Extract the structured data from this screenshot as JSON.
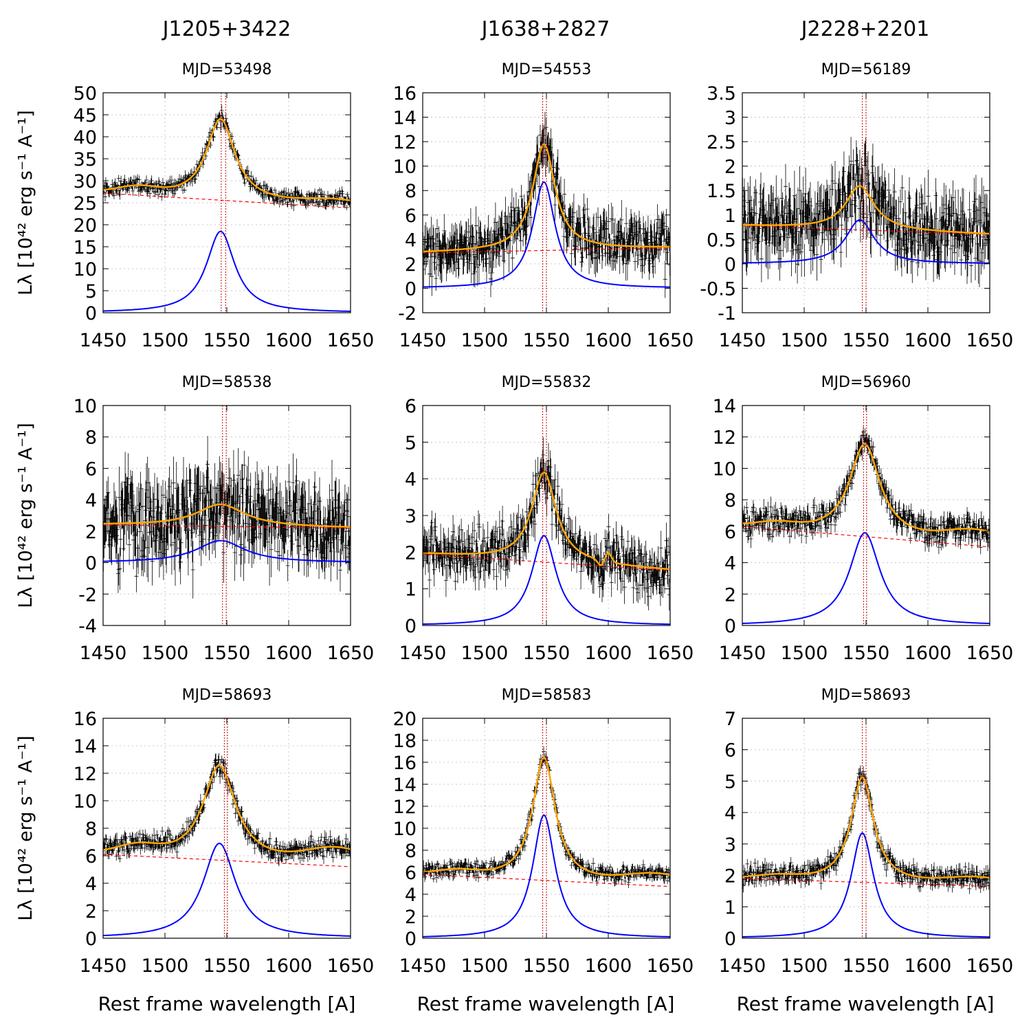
{
  "figure": {
    "column_titles": [
      "J1205+3422",
      "J1638+2827",
      "J2228+2201"
    ],
    "y_axis_label": "Lλ [10⁴² erg s⁻¹ A⁻¹]",
    "x_axis_label": "Rest frame wavelength [A]",
    "colors": {
      "data": "#000000",
      "total_fit": "#ffa500",
      "line_component": "#0000ff",
      "continuum": "#ff0000",
      "markers": "#cc0000",
      "grid": "#c8c8c8"
    }
  },
  "chart_data": [
    {
      "type": "line",
      "title": "MJD=53498",
      "object": "J1205+3422",
      "xlim": [
        1450,
        1650
      ],
      "ylim": [
        0,
        50
      ],
      "xticks": [
        1450,
        1500,
        1550,
        1600,
        1650
      ],
      "yticks": [
        0,
        5,
        10,
        15,
        20,
        25,
        30,
        35,
        40,
        45,
        50
      ],
      "peak_x": 1545,
      "line_peak": 18.5,
      "line_width": 14,
      "continuum": [
        27.2,
        23.8
      ],
      "noise": 1.2,
      "low_bump": 1.5,
      "high_bump": 1.5,
      "red_bump": 0,
      "markers": [
        1545.5,
        1549.0
      ],
      "series": [
        {
          "name": "data"
        },
        {
          "name": "total fit"
        },
        {
          "name": "line"
        },
        {
          "name": "continuum"
        }
      ]
    },
    {
      "type": "line",
      "title": "MJD=54553",
      "object": "J1638+2827",
      "xlim": [
        1450,
        1650
      ],
      "ylim": [
        -2,
        16
      ],
      "xticks": [
        1450,
        1500,
        1550,
        1600,
        1650
      ],
      "yticks": [
        -2,
        0,
        2,
        4,
        6,
        8,
        10,
        12,
        14,
        16
      ],
      "peak_x": 1548,
      "line_peak": 8.7,
      "line_width": 11,
      "continuum": [
        2.9,
        3.3
      ],
      "noise": 1.5,
      "low_bump": 0,
      "high_bump": 0,
      "red_bump": 0,
      "markers": [
        1547.0,
        1550.0
      ],
      "series": [
        {
          "name": "data"
        },
        {
          "name": "total fit"
        },
        {
          "name": "line"
        },
        {
          "name": "continuum"
        }
      ]
    },
    {
      "type": "line",
      "title": "MJD=56189",
      "object": "J2228+2201",
      "xlim": [
        1450,
        1650
      ],
      "ylim": [
        -1,
        3.5
      ],
      "xticks": [
        1450,
        1500,
        1550,
        1600,
        1650
      ],
      "yticks": [
        -1,
        -0.5,
        0,
        0.5,
        1,
        1.5,
        2,
        2.5,
        3,
        3.5
      ],
      "peak_x": 1545,
      "line_peak": 0.9,
      "line_width": 14,
      "continuum": [
        0.78,
        0.6
      ],
      "noise": 0.5,
      "low_bump": 0,
      "high_bump": 0,
      "red_bump": 0,
      "markers": [
        1547.0,
        1550.0
      ],
      "series": [
        {
          "name": "data"
        },
        {
          "name": "total fit"
        },
        {
          "name": "line"
        },
        {
          "name": "continuum"
        }
      ]
    },
    {
      "type": "line",
      "title": "MJD=58538",
      "object": "J1205+3422",
      "xlim": [
        1450,
        1650
      ],
      "ylim": [
        -4,
        10
      ],
      "xticks": [
        1450,
        1500,
        1550,
        1600,
        1650
      ],
      "yticks": [
        -4,
        -2,
        0,
        2,
        4,
        6,
        8,
        10
      ],
      "peak_x": 1545,
      "line_peak": 1.4,
      "line_width": 24,
      "continuum": [
        2.4,
        2.2
      ],
      "noise": 1.8,
      "low_bump": 0,
      "high_bump": 0,
      "red_bump": 0,
      "markers": [
        1546.5,
        1549.5
      ],
      "series": [
        {
          "name": "data"
        },
        {
          "name": "total fit"
        },
        {
          "name": "line"
        },
        {
          "name": "continuum"
        }
      ]
    },
    {
      "type": "line",
      "title": "MJD=55832",
      "object": "J1638+2827",
      "xlim": [
        1450,
        1650
      ],
      "ylim": [
        0,
        6
      ],
      "xticks": [
        1450,
        1500,
        1550,
        1600,
        1650
      ],
      "yticks": [
        0,
        1,
        2,
        3,
        4,
        5,
        6
      ],
      "peak_x": 1548,
      "line_peak": 2.45,
      "line_width": 12,
      "continuum": [
        1.95,
        1.5
      ],
      "noise": 0.45,
      "low_bump": 0,
      "high_bump": 0,
      "red_bump": 0.25,
      "markers": [
        1547.0,
        1550.0
      ],
      "series": [
        {
          "name": "data"
        },
        {
          "name": "total fit"
        },
        {
          "name": "line"
        },
        {
          "name": "continuum"
        }
      ]
    },
    {
      "type": "line",
      "title": "MJD=56960",
      "object": "J2228+2201",
      "xlim": [
        1450,
        1650
      ],
      "ylim": [
        0,
        14
      ],
      "xticks": [
        1450,
        1500,
        1550,
        1600,
        1650
      ],
      "yticks": [
        0,
        2,
        4,
        6,
        8,
        10,
        12,
        14
      ],
      "peak_x": 1549,
      "line_peak": 5.9,
      "line_width": 15,
      "continuum": [
        6.3,
        5.0
      ],
      "noise": 0.6,
      "low_bump": 0.3,
      "high_bump": 0.9,
      "red_bump": 0,
      "markers": [
        1548.0,
        1550.5
      ],
      "series": [
        {
          "name": "data"
        },
        {
          "name": "total fit"
        },
        {
          "name": "line"
        },
        {
          "name": "continuum"
        }
      ]
    },
    {
      "type": "line",
      "title": "MJD=58693",
      "object": "J1205+3422",
      "xlim": [
        1450,
        1650
      ],
      "ylim": [
        0,
        16
      ],
      "xticks": [
        1450,
        1500,
        1550,
        1600,
        1650
      ],
      "yticks": [
        0,
        2,
        4,
        6,
        8,
        10,
        12,
        14,
        16
      ],
      "peak_x": 1544,
      "line_peak": 6.9,
      "line_width": 16,
      "continuum": [
        6.1,
        5.2
      ],
      "noise": 0.5,
      "low_bump": 0.6,
      "high_bump": 1.2,
      "red_bump": 0,
      "markers": [
        1548.0,
        1550.5
      ],
      "series": [
        {
          "name": "data"
        },
        {
          "name": "total fit"
        },
        {
          "name": "line"
        },
        {
          "name": "continuum"
        }
      ]
    },
    {
      "type": "line",
      "title": "MJD=58583",
      "object": "J1638+2827",
      "xlim": [
        1450,
        1650
      ],
      "ylim": [
        0,
        20
      ],
      "xticks": [
        1450,
        1500,
        1550,
        1600,
        1650
      ],
      "yticks": [
        0,
        2,
        4,
        6,
        8,
        10,
        12,
        14,
        16,
        18,
        20
      ],
      "peak_x": 1548,
      "line_peak": 11.2,
      "line_width": 11,
      "continuum": [
        5.8,
        4.7
      ],
      "noise": 0.5,
      "low_bump": 0.4,
      "high_bump": 1.0,
      "red_bump": 0,
      "markers": [
        1547.0,
        1550.0
      ],
      "series": [
        {
          "name": "data"
        },
        {
          "name": "total fit"
        },
        {
          "name": "line"
        },
        {
          "name": "continuum"
        }
      ]
    },
    {
      "type": "line",
      "title": "MJD=58693",
      "object": "J2228+2201",
      "xlim": [
        1450,
        1650
      ],
      "ylim": [
        0,
        7
      ],
      "xticks": [
        1450,
        1500,
        1550,
        1600,
        1650
      ],
      "yticks": [
        0,
        1,
        2,
        3,
        4,
        5,
        6,
        7
      ],
      "peak_x": 1547,
      "line_peak": 3.35,
      "line_width": 11,
      "continuum": [
        1.9,
        1.65
      ],
      "noise": 0.22,
      "low_bump": 0.1,
      "high_bump": 0.25,
      "red_bump": 0,
      "markers": [
        1547.0,
        1550.0
      ],
      "series": [
        {
          "name": "data"
        },
        {
          "name": "total fit"
        },
        {
          "name": "line"
        },
        {
          "name": "continuum"
        }
      ]
    }
  ]
}
